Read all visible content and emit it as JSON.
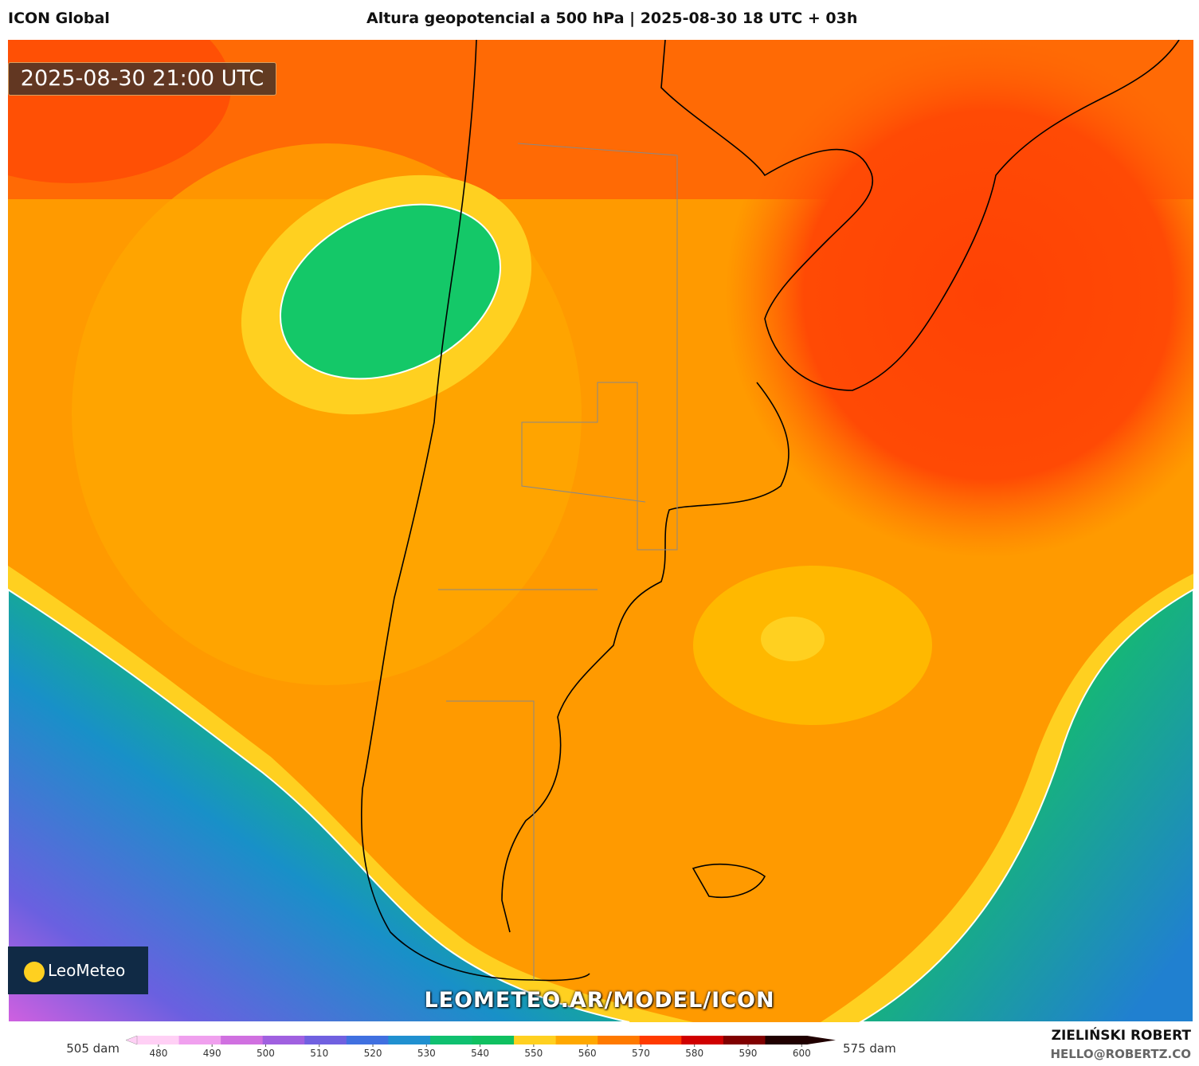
{
  "header": {
    "model": "ICON Global",
    "title": "Altura geopotencial a 500 hPa | 2025-08-30 18 UTC + 03h"
  },
  "map": {
    "timestamp": "2025-08-30 21:00 UTC",
    "watermark": "LEOMETEO.AR/MODEL/ICON",
    "logo": "LeoMeteo"
  },
  "colorbar": {
    "left_label": "505 dam",
    "right_label": "575 dam",
    "range": [
      476,
      601
    ],
    "ticks": [
      480,
      490,
      500,
      510,
      520,
      530,
      540,
      550,
      560,
      570,
      580,
      590,
      600
    ],
    "colors": [
      "#ffd0f5",
      "#f0a0ee",
      "#d070e0",
      "#a060e0",
      "#7060e0",
      "#4070e0",
      "#2090d0",
      "#10c070",
      "#10c060",
      "#ffd020",
      "#ffa800",
      "#ff7a00",
      "#ff3a00",
      "#d00000",
      "#800000",
      "#200000"
    ]
  },
  "credits": {
    "author": "ZIELIŃSKI ROBERT",
    "email": "HELLO@ROBERTZ.CO"
  }
}
